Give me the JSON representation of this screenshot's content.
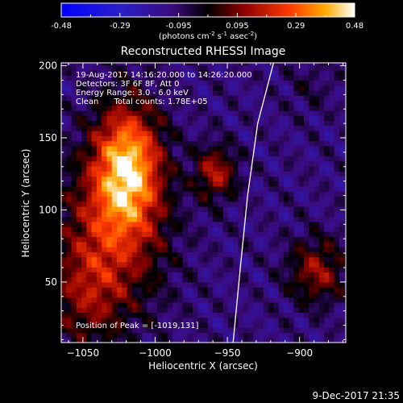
{
  "colors": {
    "background": "#000000",
    "text": "#ffffff",
    "limb": "#ffffff"
  },
  "colorbar": {
    "tick_labels": [
      "-0.48",
      "-0.29",
      "-0.095",
      "0.095",
      "0.29",
      "0.48"
    ],
    "unit_base": "(photons cm",
    "unit_exp1": "-2",
    "unit_mid": " s",
    "unit_exp2": "-1",
    "unit_mid2": " asec",
    "unit_exp3": "-2",
    "unit_end": ")",
    "range": [
      -0.48,
      0.48
    ]
  },
  "chart_data": {
    "type": "heatmap",
    "title": "Reconstructed RHESSI Image",
    "xlabel": "Heliocentric X (arcsec)",
    "ylabel": "Heliocentric Y (arcsec)",
    "xlim": [
      -1065,
      -868
    ],
    "ylim": [
      8,
      202
    ],
    "xticks": [
      -1050,
      -1000,
      -950,
      -900
    ],
    "yticks": [
      50,
      100,
      150,
      200
    ],
    "xtick_labels": [
      "−1050",
      "−1000",
      "−950",
      "−900"
    ],
    "ytick_labels": [
      "50",
      "100",
      "150",
      "200"
    ],
    "annotations": [
      "19-Aug-2017 14:16:20.000 to 14:26:20.000",
      "Detectors: 3F 6F 8F, Att 0",
      "Energy Range: 3.0 - 6.0 keV",
      "Clean      Total counts: 1.78E+05"
    ],
    "peak_label": "Position of Peak = [-1019,131]",
    "peak": [
      -1019,
      131
    ],
    "sources": [
      {
        "x": -1019,
        "y": 131,
        "sx": 16,
        "sy": 30,
        "amp": 0.48
      },
      {
        "x": -1030,
        "y": 85,
        "sx": 26,
        "sy": 40,
        "amp": 0.26
      },
      {
        "x": -1048,
        "y": 40,
        "sx": 18,
        "sy": 26,
        "amp": 0.16
      },
      {
        "x": -958,
        "y": 126,
        "sx": 10,
        "sy": 13,
        "amp": 0.27
      },
      {
        "x": -888,
        "y": 58,
        "sx": 14,
        "sy": 16,
        "amp": 0.24
      },
      {
        "x": -893,
        "y": 185,
        "sx": 12,
        "sy": 12,
        "amp": 0.06
      }
    ],
    "limb": [
      [
        -946,
        8
      ],
      [
        -941,
        60
      ],
      [
        -936,
        110
      ],
      [
        -929,
        160
      ],
      [
        -918,
        202
      ]
    ]
  },
  "footer": {
    "timestamp": "9-Dec-2017 21:35"
  }
}
